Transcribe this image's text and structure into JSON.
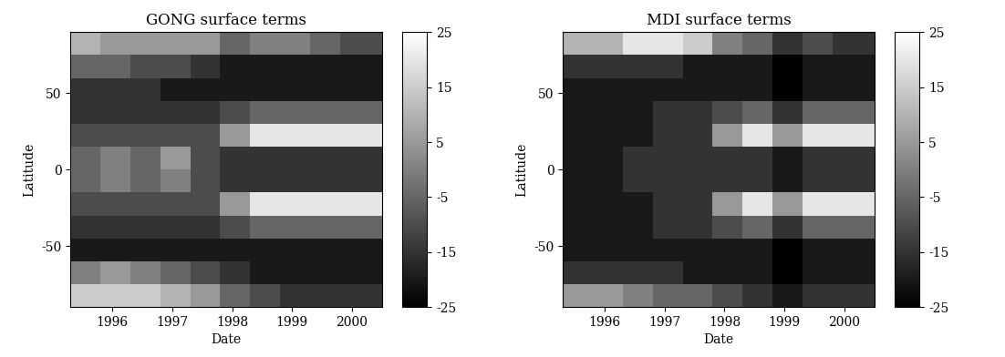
{
  "chart_data": [
    {
      "type": "heatmap",
      "title": "GONG surface terms",
      "xlabel": "Date",
      "ylabel": "Latitude",
      "color": "gray",
      "x_edges": [
        1995.3,
        1995.8,
        1996.3,
        1996.8,
        1997.3,
        1997.8,
        1998.3,
        1998.8,
        1999.3,
        1999.8,
        2000.5
      ],
      "y_edges": [
        -90,
        -75,
        -60,
        -45,
        -30,
        -15,
        0,
        15,
        30,
        45,
        60,
        75,
        90
      ],
      "cells": [
        [
          15,
          15,
          15,
          10,
          5,
          -5,
          -10,
          -15,
          -15,
          -15
        ],
        [
          0,
          5,
          0,
          -5,
          -10,
          -15,
          -20,
          -20,
          -20,
          -20
        ],
        [
          -20,
          -20,
          -20,
          -20,
          -20,
          -20,
          -20,
          -20,
          -20,
          -20
        ],
        [
          -15,
          -15,
          -15,
          -15,
          -15,
          -10,
          -5,
          -5,
          -5,
          -5
        ],
        [
          -10,
          -10,
          -10,
          -10,
          -10,
          5,
          20,
          20,
          20,
          20
        ],
        [
          -5,
          0,
          -5,
          0,
          -10,
          -15,
          -15,
          -15,
          -15,
          -15
        ],
        [
          -5,
          0,
          -5,
          5,
          -10,
          -15,
          -15,
          -15,
          -15,
          -15
        ],
        [
          -10,
          -10,
          -10,
          -10,
          -10,
          5,
          20,
          20,
          20,
          20
        ],
        [
          -15,
          -15,
          -15,
          -15,
          -15,
          -10,
          -5,
          -5,
          -5,
          -5
        ],
        [
          -15,
          -15,
          -15,
          -20,
          -20,
          -20,
          -20,
          -20,
          -20,
          -20
        ],
        [
          -5,
          -5,
          -10,
          -10,
          -15,
          -20,
          -20,
          -20,
          -20,
          -20
        ],
        [
          10,
          5,
          5,
          5,
          5,
          -5,
          0,
          0,
          -5,
          -10
        ]
      ],
      "xlim": [
        1995.3,
        2000.5
      ],
      "ylim": [
        -90,
        90
      ],
      "xticks": [
        1996,
        1997,
        1998,
        1999,
        2000
      ],
      "yticks": [
        -50,
        0,
        50
      ],
      "colorbar_lim": [
        -25,
        25
      ],
      "colorbar_ticks": [
        -25,
        -15,
        -5,
        5,
        15,
        25
      ]
    },
    {
      "type": "heatmap",
      "title": "MDI surface terms",
      "xlabel": "Date",
      "ylabel": "Latitude",
      "color": "gray",
      "x_edges": [
        1995.3,
        1995.8,
        1996.3,
        1996.8,
        1997.3,
        1997.8,
        1998.3,
        1998.8,
        1999.3,
        1999.8,
        2000.5
      ],
      "y_edges": [
        -90,
        -75,
        -60,
        -45,
        -30,
        -15,
        0,
        15,
        30,
        45,
        60,
        75,
        90
      ],
      "cells": [
        [
          5,
          5,
          0,
          -5,
          -5,
          -10,
          -15,
          -20,
          -15,
          -15
        ],
        [
          -15,
          -15,
          -15,
          -15,
          -20,
          -20,
          -20,
          -25,
          -20,
          -20
        ],
        [
          -20,
          -20,
          -20,
          -20,
          -20,
          -20,
          -20,
          -25,
          -20,
          -20
        ],
        [
          -20,
          -20,
          -20,
          -15,
          -15,
          -10,
          -5,
          -15,
          -5,
          -5
        ],
        [
          -20,
          -20,
          -20,
          -15,
          -15,
          5,
          20,
          5,
          20,
          20
        ],
        [
          -20,
          -20,
          -15,
          -15,
          -15,
          -15,
          -15,
          -20,
          -15,
          -15
        ],
        [
          -20,
          -20,
          -15,
          -15,
          -15,
          -15,
          -15,
          -20,
          -15,
          -15
        ],
        [
          -20,
          -20,
          -20,
          -15,
          -15,
          5,
          20,
          5,
          20,
          20
        ],
        [
          -20,
          -20,
          -20,
          -15,
          -15,
          -10,
          -5,
          -15,
          -5,
          -5
        ],
        [
          -20,
          -20,
          -20,
          -20,
          -20,
          -20,
          -20,
          -25,
          -20,
          -20
        ],
        [
          -15,
          -15,
          -15,
          -15,
          -20,
          -20,
          -20,
          -25,
          -20,
          -20
        ],
        [
          10,
          10,
          20,
          20,
          15,
          0,
          -5,
          -15,
          -10,
          -15
        ]
      ],
      "xlim": [
        1995.3,
        2000.5
      ],
      "ylim": [
        -90,
        90
      ],
      "xticks": [
        1996,
        1997,
        1998,
        1999,
        2000
      ],
      "yticks": [
        -50,
        0,
        50
      ],
      "colorbar_lim": [
        -25,
        25
      ],
      "colorbar_ticks": [
        -25,
        -15,
        -5,
        5,
        15,
        25
      ]
    }
  ]
}
